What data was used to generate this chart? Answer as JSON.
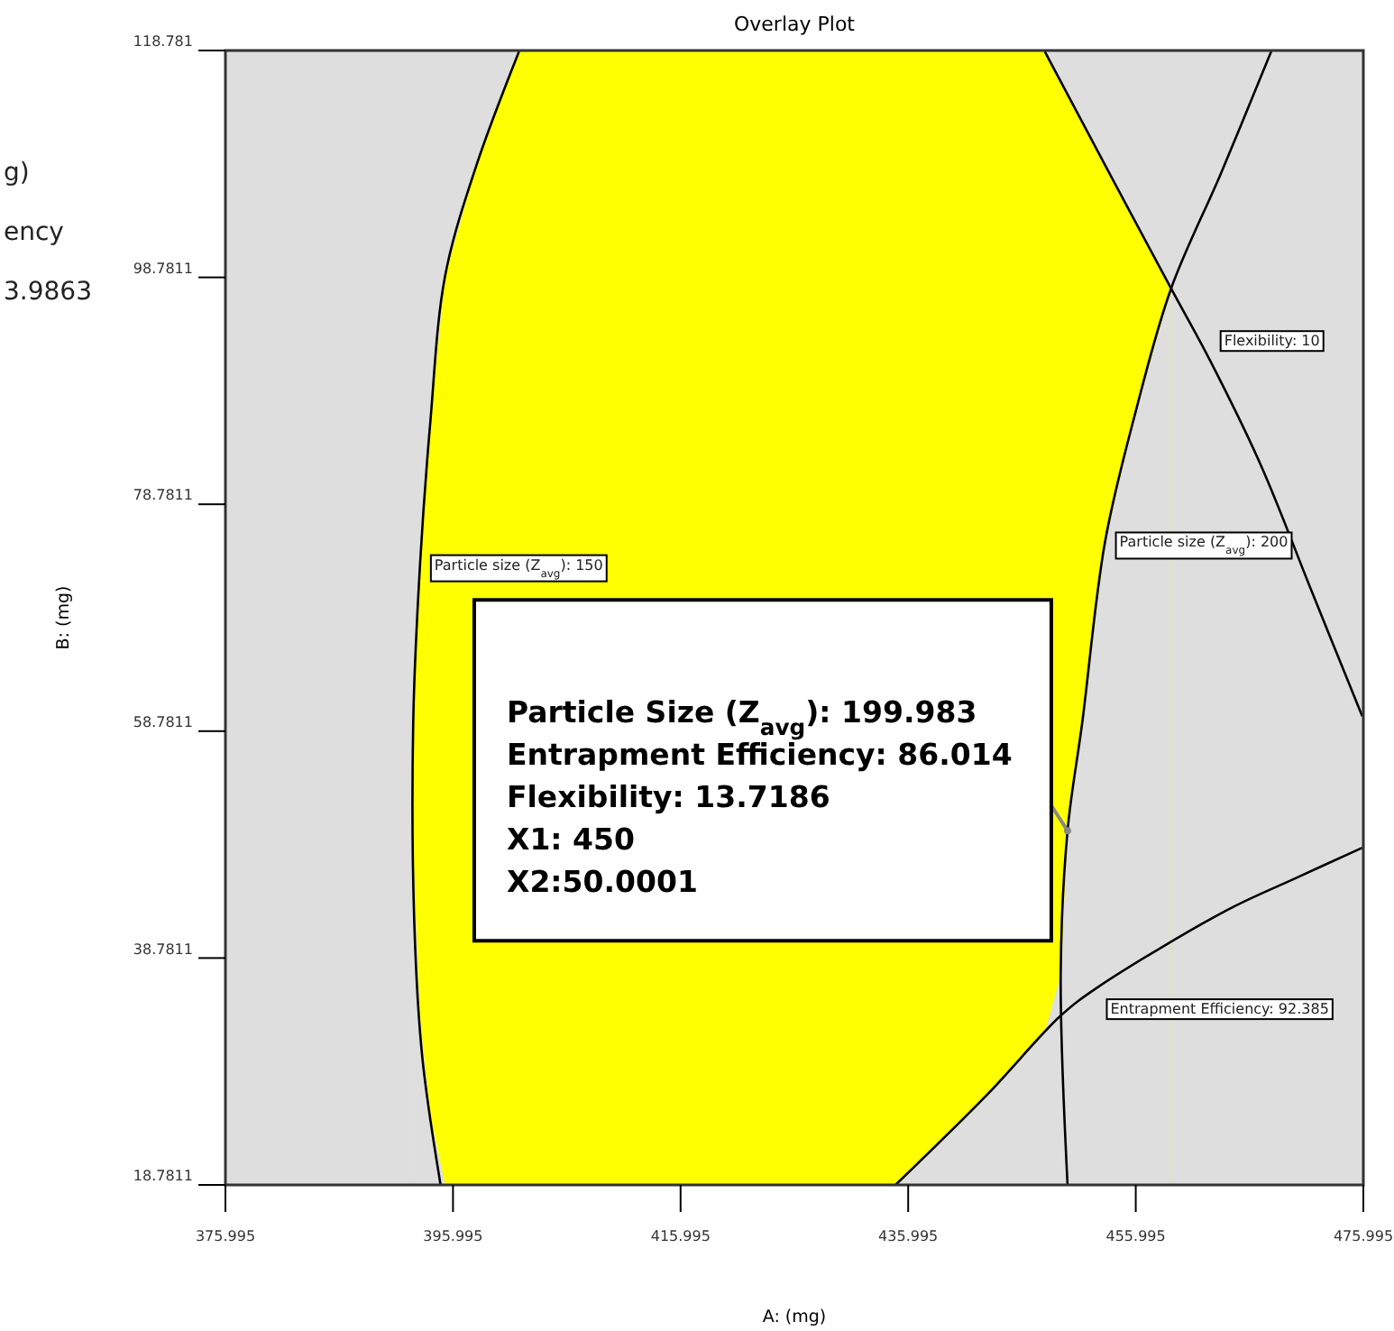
{
  "chart_data": {
    "type": "line",
    "title": "Overlay Plot",
    "xlabel": "A: (mg)",
    "ylabel": "B: (mg)",
    "xlim": [
      375.995,
      475.995
    ],
    "xticks": [
      375.995,
      395.995,
      415.995,
      435.995,
      455.995,
      475.995
    ],
    "ylim": [
      18.7811,
      118.781
    ],
    "yticks": [
      18.7811,
      38.7811,
      58.7811,
      78.7811,
      98.7811,
      118.781
    ],
    "grid": false,
    "legend": false,
    "marker": "none",
    "line_style": "solid",
    "series": [
      {
        "type": "area",
        "color": "#ffff00",
        "x": [
          392.5,
          393.1,
          394.0,
          395.3,
          398.0,
          401.8,
          434.9,
          442.9,
          448.0,
          449.4,
          450.0,
          451.3,
          453.3,
          456.0,
          459.1
        ],
        "values": [
          62,
          73.5,
          86,
          98.9,
          108.5,
          118.7,
          118.7,
          118.7,
          118.7,
          116.1,
          114.9,
          112.4,
          108.7,
          103.7,
          97.8
        ],
        "line_style": "none"
      },
      {
        "type": "area",
        "color": "#dedede",
        "x": [
          392.5,
          393.1,
          394.0,
          395.3,
          398.0,
          401.8,
          434.9,
          442.9,
          448.0,
          449.4,
          450.0,
          451.3,
          453.3,
          456.0,
          459.1
        ],
        "values": [
          48,
          33.5,
          25,
          18.8,
          18.8,
          18.8,
          18.8,
          26.7,
          32.2,
          37.3,
          50.0,
          59.6,
          75.5,
          87,
          97.8
        ],
        "line_style": "none"
      },
      {
        "name": "Particle size (Z$_{avg}$): 150",
        "color": "#000000",
        "x": [
          401.8,
          398.0,
          395.3,
          394.0,
          393.1,
          392.5,
          392.6,
          393.3,
          394.9
        ],
        "values": [
          118.7,
          108.5,
          98.9,
          86,
          73.5,
          59.6,
          41.7,
          30,
          18.8
        ]
      },
      {
        "name": "Particle size (Z$_{avg}$): 200",
        "color": "#000000",
        "x": [
          467.9,
          463.5,
          459.1,
          456.0,
          453.3,
          451.3,
          450.0,
          449.4,
          450.0
        ],
        "values": [
          118.7,
          108,
          97.8,
          87,
          75.5,
          59.6,
          50.0,
          37.3,
          18.8
        ]
      },
      {
        "name": "Flexibility: 10",
        "color": "#000000",
        "x": [
          448.0,
          453.5,
          459.1,
          462.5,
          467.0,
          471.5,
          475.9
        ],
        "values": [
          118.7,
          108.3,
          97.8,
          91.5,
          82.2,
          71,
          60.1
        ]
      },
      {
        "name": "Entrapment Efficiency: 92.385",
        "color": "#000000",
        "x": [
          434.9,
          442.9,
          449.4,
          452.5,
          464.0,
          470,
          475.9
        ],
        "values": [
          18.8,
          26.7,
          33.7,
          36.1,
          43.0,
          45.8,
          48.5
        ]
      }
    ],
    "annotations": [
      "g)",
      "ency",
      "3.9863",
      {
        "text": "Particle Size (Z$_{avg}$): 199.983\nEntrapment Efficiency: 86.014\nFlexibility: 13.7186\nX1: 450\nX2:50.0001",
        "x": 450,
        "y": 50.0001
      }
    ]
  }
}
